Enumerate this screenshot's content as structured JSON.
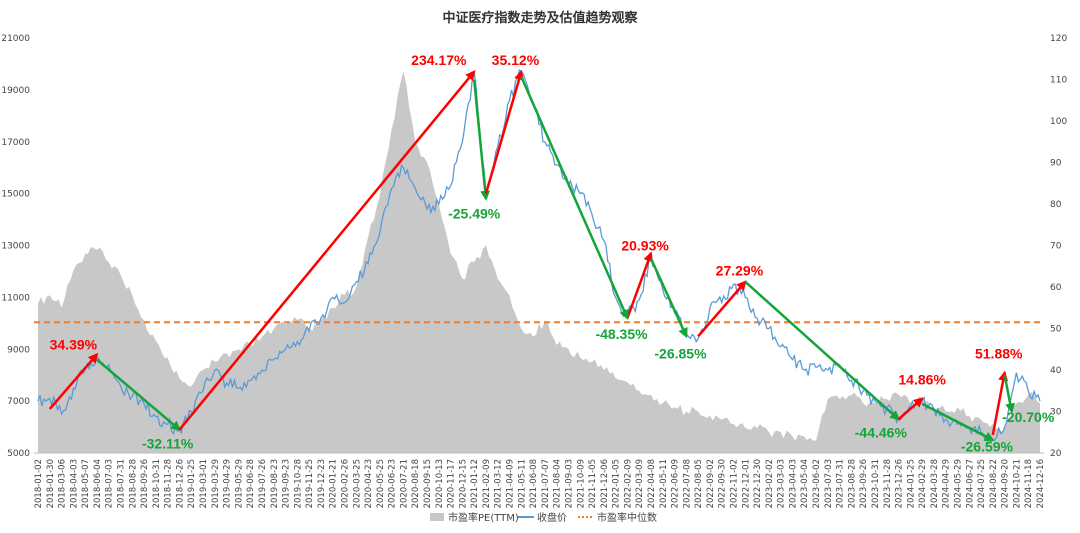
{
  "chart_data": {
    "type": "line",
    "title": "中证医疗指数走势及估值趋势观察",
    "y_left": {
      "min": 5000,
      "max": 21000,
      "ticks": [
        5000,
        7000,
        9000,
        11000,
        13000,
        15000,
        17000,
        19000,
        21000
      ]
    },
    "y_right": {
      "min": 20,
      "max": 120,
      "ticks": [
        20,
        30,
        40,
        50,
        60,
        70,
        80,
        90,
        100,
        110,
        120
      ]
    },
    "x_labels": [
      "2018-01-02",
      "2018-01-30",
      "2018-03-06",
      "2018-04-03",
      "2018-05-07",
      "2018-06-04",
      "2018-07-03",
      "2018-07-31",
      "2018-08-28",
      "2018-09-26",
      "2018-10-31",
      "2018-11-28",
      "2018-12-26",
      "2019-01-25",
      "2019-03-01",
      "2019-03-29",
      "2019-04-29",
      "2019-05-29",
      "2019-06-28",
      "2019-07-26",
      "2019-08-23",
      "2019-09-23",
      "2019-10-28",
      "2019-11-25",
      "2019-12-23",
      "2020-01-21",
      "2020-02-26",
      "2020-03-25",
      "2020-04-23",
      "2020-05-25",
      "2020-06-23",
      "2020-07-21",
      "2020-08-18",
      "2020-09-15",
      "2020-10-13",
      "2020-11-17",
      "2020-12-15",
      "2021-01-12",
      "2021-02-09",
      "2021-03-12",
      "2021-04-09",
      "2021-05-11",
      "2021-06-08",
      "2021-07-07",
      "2021-08-04",
      "2021-09-03",
      "2021-10-09",
      "2021-11-05",
      "2021-12-06",
      "2022-01-05",
      "2022-02-09",
      "2022-03-09",
      "2022-04-08",
      "2022-05-11",
      "2022-06-09",
      "2022-07-08",
      "2022-08-05",
      "2022-09-02",
      "2022-09-30",
      "2022-11-02",
      "2022-12-01",
      "2022-12-30",
      "2023-02-02",
      "2023-03-03",
      "2023-04-03",
      "2023-05-04",
      "2023-06-02",
      "2023-07-03",
      "2023-07-31",
      "2023-08-28",
      "2023-09-26",
      "2023-10-31",
      "2023-11-28",
      "2023-12-26",
      "2024-01-25",
      "2024-02-29",
      "2024-03-28",
      "2024-04-29",
      "2024-05-29",
      "2024-06-27",
      "2024-07-25",
      "2024-08-22",
      "2024-09-20",
      "2024-10-21",
      "2024-11-18",
      "2024-12-16"
    ],
    "series": [
      {
        "name": "市盈率PE(TTM)",
        "type": "area",
        "axis": "right",
        "color": "#c8c8c8",
        "points": [
          [
            0,
            56
          ],
          [
            1,
            58
          ],
          [
            2,
            55
          ],
          [
            3,
            64
          ],
          [
            4,
            68
          ],
          [
            5,
            69
          ],
          [
            6,
            66
          ],
          [
            7,
            63
          ],
          [
            8,
            58
          ],
          [
            9,
            52
          ],
          [
            10,
            47
          ],
          [
            11,
            43
          ],
          [
            12,
            38
          ],
          [
            13,
            36
          ],
          [
            14,
            40
          ],
          [
            15,
            42
          ],
          [
            16,
            44
          ],
          [
            17,
            45
          ],
          [
            18,
            46
          ],
          [
            19,
            48
          ],
          [
            20,
            50
          ],
          [
            21,
            51
          ],
          [
            22,
            52
          ],
          [
            23,
            50
          ],
          [
            24,
            52
          ],
          [
            25,
            55
          ],
          [
            26,
            58
          ],
          [
            27,
            60
          ],
          [
            28,
            72
          ],
          [
            29,
            82
          ],
          [
            30,
            98
          ],
          [
            31,
            112
          ],
          [
            32,
            95
          ],
          [
            33,
            90
          ],
          [
            34,
            80
          ],
          [
            35,
            68
          ],
          [
            36,
            62
          ],
          [
            37,
            66
          ],
          [
            38,
            70
          ],
          [
            39,
            62
          ],
          [
            40,
            58
          ],
          [
            41,
            50
          ],
          [
            42,
            48
          ],
          [
            43,
            52
          ],
          [
            44,
            46
          ],
          [
            45,
            45
          ],
          [
            46,
            43
          ],
          [
            47,
            42
          ],
          [
            48,
            40
          ],
          [
            49,
            38
          ],
          [
            50,
            37
          ],
          [
            51,
            35
          ],
          [
            52,
            34
          ],
          [
            53,
            32
          ],
          [
            54,
            31
          ],
          [
            55,
            30
          ],
          [
            56,
            30
          ],
          [
            57,
            29
          ],
          [
            58,
            28
          ],
          [
            59,
            27
          ],
          [
            60,
            26
          ],
          [
            61,
            26
          ],
          [
            62,
            25
          ],
          [
            63,
            25
          ],
          [
            64,
            24
          ],
          [
            65,
            24
          ],
          [
            66,
            23
          ],
          [
            67,
            33
          ],
          [
            68,
            33
          ],
          [
            69,
            34
          ],
          [
            70,
            32
          ],
          [
            71,
            32
          ],
          [
            72,
            33
          ],
          [
            73,
            34
          ],
          [
            74,
            32
          ],
          [
            75,
            33
          ],
          [
            76,
            31
          ],
          [
            77,
            30
          ],
          [
            78,
            31
          ],
          [
            79,
            29
          ],
          [
            80,
            28
          ],
          [
            81,
            27
          ],
          [
            82,
            26
          ],
          [
            83,
            32
          ],
          [
            84,
            34
          ],
          [
            85,
            32
          ]
        ]
      },
      {
        "name": "收盘价",
        "type": "line",
        "axis": "left",
        "color": "#5b9bd5",
        "points": [
          [
            0,
            7000
          ],
          [
            1,
            7100
          ],
          [
            2,
            6500
          ],
          [
            3,
            7500
          ],
          [
            4,
            8200
          ],
          [
            5,
            8700
          ],
          [
            6,
            8400
          ],
          [
            7,
            7600
          ],
          [
            8,
            7200
          ],
          [
            9,
            6900
          ],
          [
            10,
            6400
          ],
          [
            11,
            6100
          ],
          [
            12,
            5900
          ],
          [
            13,
            6600
          ],
          [
            14,
            7400
          ],
          [
            15,
            8200
          ],
          [
            16,
            7700
          ],
          [
            17,
            7500
          ],
          [
            18,
            7800
          ],
          [
            19,
            8200
          ],
          [
            20,
            8600
          ],
          [
            21,
            9000
          ],
          [
            22,
            9300
          ],
          [
            23,
            9700
          ],
          [
            24,
            10200
          ],
          [
            25,
            11000
          ],
          [
            26,
            10800
          ],
          [
            27,
            11600
          ],
          [
            28,
            12300
          ],
          [
            29,
            13500
          ],
          [
            30,
            15200
          ],
          [
            31,
            16000
          ],
          [
            32,
            15200
          ],
          [
            33,
            14400
          ],
          [
            34,
            14600
          ],
          [
            35,
            15300
          ],
          [
            36,
            17000
          ],
          [
            37,
            19700
          ],
          [
            38,
            15000
          ],
          [
            39,
            16800
          ],
          [
            40,
            18600
          ],
          [
            41,
            19700
          ],
          [
            42,
            18500
          ],
          [
            43,
            17000
          ],
          [
            44,
            16100
          ],
          [
            45,
            15300
          ],
          [
            46,
            15000
          ],
          [
            47,
            14200
          ],
          [
            48,
            13200
          ],
          [
            49,
            11000
          ],
          [
            50,
            10300
          ],
          [
            51,
            10900
          ],
          [
            52,
            12500
          ],
          [
            53,
            11300
          ],
          [
            54,
            10400
          ],
          [
            55,
            9600
          ],
          [
            56,
            9400
          ],
          [
            57,
            10600
          ],
          [
            58,
            10800
          ],
          [
            59,
            11500
          ],
          [
            60,
            11000
          ],
          [
            61,
            10200
          ],
          [
            62,
            9800
          ],
          [
            63,
            9100
          ],
          [
            64,
            8600
          ],
          [
            65,
            8200
          ],
          [
            66,
            8300
          ],
          [
            67,
            8200
          ],
          [
            68,
            8400
          ],
          [
            69,
            7800
          ],
          [
            70,
            7400
          ],
          [
            71,
            7000
          ],
          [
            72,
            6700
          ],
          [
            73,
            6300
          ],
          [
            74,
            6800
          ],
          [
            75,
            7000
          ],
          [
            76,
            6700
          ],
          [
            77,
            6300
          ],
          [
            78,
            6100
          ],
          [
            79,
            6000
          ],
          [
            80,
            5800
          ],
          [
            81,
            5500
          ],
          [
            82,
            6000
          ],
          [
            83,
            8100
          ],
          [
            84,
            7400
          ],
          [
            85,
            7000
          ]
        ]
      },
      {
        "name": "市盈率中位数",
        "type": "hline",
        "axis": "right",
        "color": "#ed7d31",
        "value": 51.5
      }
    ],
    "annotations": [
      {
        "text": "34.39%",
        "color": "#ff0000",
        "from": [
          1,
          6700
        ],
        "to": [
          5,
          8800
        ],
        "label_at": [
          3,
          9000
        ]
      },
      {
        "text": "-32.11%",
        "color": "#13a538",
        "from": [
          5,
          8600
        ],
        "to": [
          12,
          5900
        ],
        "label_at": [
          11,
          5180
        ]
      },
      {
        "text": "234.17%",
        "color": "#ff0000",
        "from": [
          12,
          5900
        ],
        "to": [
          37,
          19700
        ],
        "label_at": [
          34,
          19950
        ]
      },
      {
        "text": "-25.49%",
        "color": "#13a538",
        "from": [
          37,
          19400
        ],
        "to": [
          38,
          14800
        ],
        "label_at": [
          37,
          14050
        ]
      },
      {
        "text": "35.12%",
        "color": "#ff0000",
        "from": [
          38,
          15000
        ],
        "to": [
          41,
          19700
        ],
        "label_at": [
          40.5,
          19950
        ]
      },
      {
        "text": "20.93%",
        "color": "#ff0000",
        "from": [
          50,
          10200
        ],
        "to": [
          52,
          12700
        ],
        "label_at": [
          51.5,
          12800
        ]
      },
      {
        "text": "-48.35%",
        "color": "#13a538",
        "from": [
          41,
          19500
        ],
        "to": [
          50,
          10200
        ],
        "label_at": [
          49.5,
          9400
        ]
      },
      {
        "text": "-26.85%",
        "color": "#13a538",
        "from": [
          52,
          12500
        ],
        "to": [
          55,
          9500
        ],
        "label_at": [
          54.5,
          8650
        ]
      },
      {
        "text": "27.29%",
        "color": "#ff0000",
        "from": [
          56,
          9500
        ],
        "to": [
          60,
          11600
        ],
        "label_at": [
          59.5,
          11850
        ]
      },
      {
        "text": "-44.46%",
        "color": "#13a538",
        "from": [
          60,
          11600
        ],
        "to": [
          73,
          6300
        ],
        "label_at": [
          71.5,
          5600
        ]
      },
      {
        "text": "14.86%",
        "color": "#ff0000",
        "from": [
          73,
          6300
        ],
        "to": [
          75,
          7100
        ],
        "label_at": [
          75,
          7650
        ]
      },
      {
        "text": "-26.59%",
        "color": "#13a538",
        "from": [
          75,
          6900
        ],
        "to": [
          81,
          5500
        ],
        "label_at": [
          80.5,
          5050
        ]
      },
      {
        "text": "51.88%",
        "color": "#ff0000",
        "from": [
          81,
          5700
        ],
        "to": [
          82,
          8100
        ],
        "label_at": [
          81.5,
          8650
        ]
      },
      {
        "text": "-20.70%",
        "color": "#13a538",
        "from": [
          82,
          8000
        ],
        "to": [
          82.6,
          6600
        ],
        "label_at": [
          84,
          6200
        ]
      }
    ],
    "legend_position": "bottom",
    "grid": false
  }
}
